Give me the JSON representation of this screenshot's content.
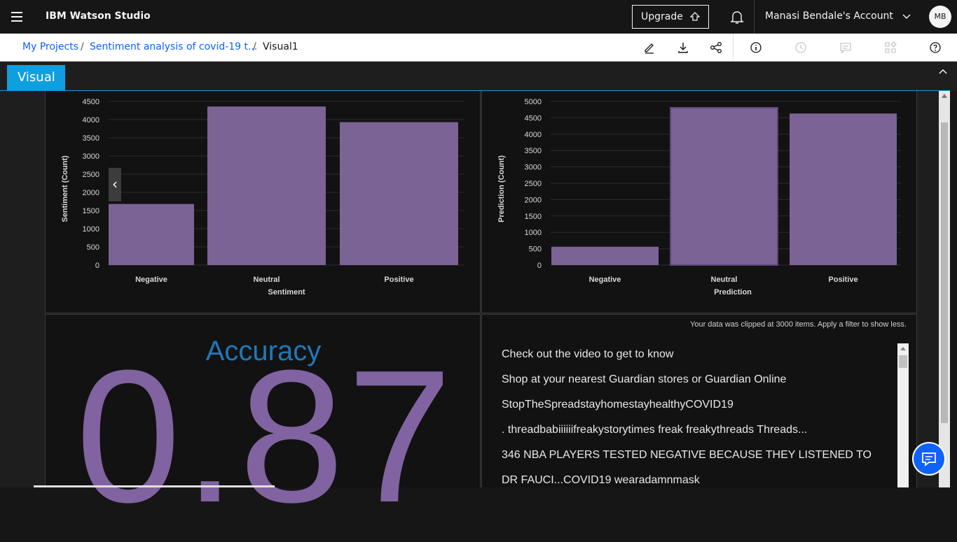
{
  "topbar": {
    "brand": "IBM Watson Studio",
    "upgrade_label": "Upgrade",
    "account_label": "Manasi Bendale's Account",
    "avatar_initials": "MB",
    "icons": [
      "menu-icon",
      "upload-icon",
      "bell-icon",
      "chevron-down-icon"
    ]
  },
  "breadcrumb": {
    "items": [
      "My Projects",
      "Sentiment analysis of covid-19 t...",
      "Visual1"
    ],
    "separator": "/",
    "tools": [
      "edit-icon",
      "download-icon",
      "share-icon",
      "info-icon",
      "history-icon",
      "comment-icon",
      "apps-icon",
      "help-icon"
    ]
  },
  "visual": {
    "tab_label": "Visual",
    "accent_color": "#0f9fe0"
  },
  "charts": {
    "bar_color": "#7b6396"
  },
  "chart_data": [
    {
      "type": "bar",
      "categories": [
        "Negative",
        "Neutral",
        "Positive"
      ],
      "values": [
        1680,
        4360,
        3930
      ],
      "xlabel": "Sentiment",
      "ylabel": "Sentiment (Count)",
      "ylim": [
        0,
        4500
      ],
      "yticks": [
        0,
        500,
        1000,
        1500,
        2000,
        2500,
        3000,
        3500,
        4000,
        4500
      ],
      "grid": true
    },
    {
      "type": "bar",
      "categories": [
        "Negative",
        "Neutral",
        "Positive"
      ],
      "values": [
        560,
        4810,
        4630
      ],
      "xlabel": "Prediction",
      "ylabel": "Prediction (Count)",
      "ylim": [
        0,
        5000
      ],
      "yticks": [
        0,
        500,
        1000,
        1500,
        2000,
        2500,
        3000,
        3500,
        4000,
        4500,
        5000
      ],
      "grid": true
    }
  ],
  "accuracy": {
    "title": "Accuracy",
    "value": "0.87"
  },
  "text_panel": {
    "clip_note": "Your data was clipped at 3000 items. Apply a filter to show less.",
    "items": [
      "Check out the video to get to know",
      "Shop at your nearest Guardian stores or Guardian Online",
      "StopTheSpreadstayhomestayhealthyCOVID19",
      ". threadbabiiiiiifreakystorytimes freak freakythreads Threads...",
      "346 NBA PLAYERS TESTED NEGATIVE BECAUSE THEY LISTENED TO",
      "DR FAUCI...COVID19 wearadamnmask"
    ]
  }
}
